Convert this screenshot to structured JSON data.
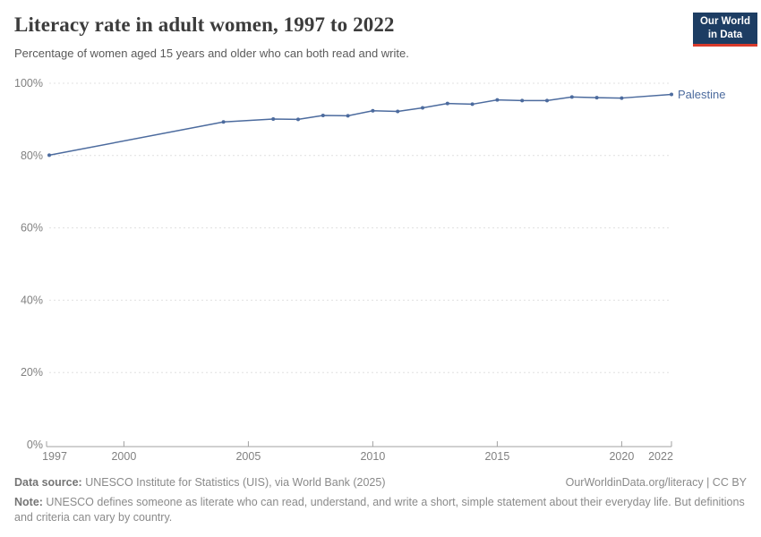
{
  "header": {
    "title": "Literacy rate in adult women, 1997 to 2022",
    "subtitle": "Percentage of women aged 15 years and older who can both read and write.",
    "logo": {
      "line1": "Our World",
      "line2": "in Data",
      "bg_color": "#1d3d63",
      "stripe_color": "#d93a2b"
    }
  },
  "chart_data": {
    "type": "line",
    "title": "Literacy rate in adult women, 1997 to 2022",
    "xlabel": "",
    "ylabel": "",
    "xlim": [
      1997,
      2022
    ],
    "ylim": [
      0,
      100
    ],
    "x_ticks": [
      1997,
      2000,
      2005,
      2010,
      2015,
      2020,
      2022
    ],
    "y_ticks": [
      0,
      20,
      40,
      60,
      80,
      100
    ],
    "y_tick_suffix": "%",
    "grid": "horizontal-dashed",
    "legend_position": "end-of-line label",
    "colors": {
      "line": "#4c6b9e",
      "gridline": "#e0e0e0",
      "axis": "#a0a0a0",
      "tick_label": "#818181"
    },
    "series": [
      {
        "name": "Palestine",
        "color": "#4c6b9e",
        "x": [
          1997,
          2004,
          2006,
          2007,
          2008,
          2009,
          2010,
          2011,
          2012,
          2013,
          2014,
          2015,
          2016,
          2017,
          2018,
          2019,
          2020,
          2022
        ],
        "values": [
          80.1,
          89.3,
          90.1,
          90.0,
          91.1,
          91.0,
          92.4,
          92.2,
          93.2,
          94.4,
          94.2,
          95.4,
          95.2,
          95.2,
          96.2,
          96.0,
          95.9,
          96.9
        ]
      }
    ]
  },
  "footer": {
    "datasource_label": "Data source:",
    "datasource_text": " UNESCO Institute for Statistics (UIS), via World Bank (2025)",
    "license_text": "OurWorldinData.org/literacy | CC BY",
    "note_label": "Note:",
    "note_text": " UNESCO defines someone as literate who can read, understand, and write a short, simple statement about their everyday life. But definitions and criteria can vary by country."
  }
}
